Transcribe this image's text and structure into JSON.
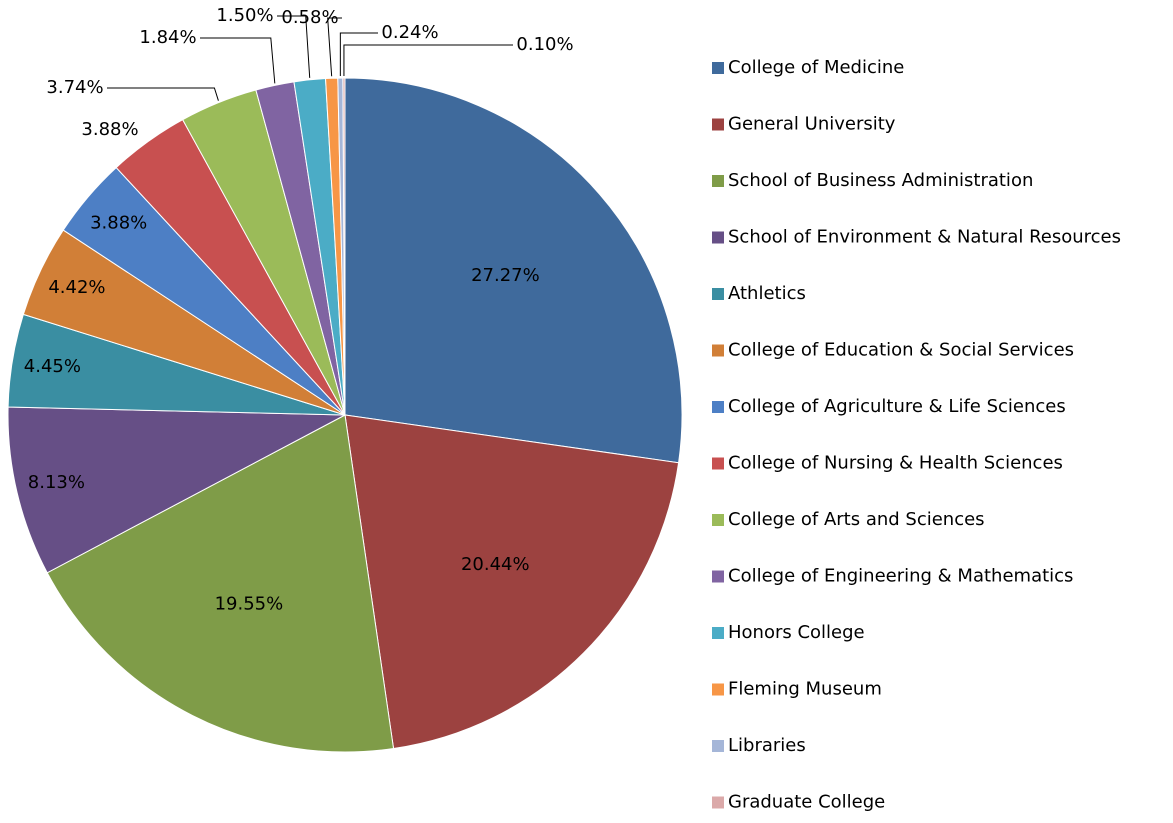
{
  "chart_data": {
    "type": "pie",
    "categories": [
      "College of Medicine",
      "General University",
      "School of Business Administration",
      "School of Environment & Natural Resources",
      "Athletics",
      "College of Education & Social Services",
      "College of Agriculture & Life Sciences",
      "College of Nursing & Health Sciences",
      "College of Arts and Sciences",
      "College of Engineering & Mathematics",
      "Honors College",
      "Fleming Museum",
      "Libraries",
      "Graduate College"
    ],
    "values": [
      27.27,
      20.44,
      19.55,
      8.13,
      4.45,
      4.42,
      3.88,
      3.88,
      3.74,
      1.84,
      1.5,
      0.58,
      0.24,
      0.1
    ],
    "value_labels": [
      "27.27%",
      "20.44%",
      "19.55%",
      "8.13%",
      "4.45%",
      "4.42%",
      "3.88%",
      "3.88%",
      "3.74%",
      "1.84%",
      "1.50%",
      "0.58%",
      "0.24%",
      "0.10%"
    ],
    "colors": [
      "#3f6a9c",
      "#9c4240",
      "#7f9c48",
      "#664f86",
      "#3a8ea2",
      "#d17f37",
      "#4d7fc5",
      "#c85050",
      "#9bbb59",
      "#8064a2",
      "#4bacc6",
      "#f79646",
      "#a5b6d8",
      "#dba9a9"
    ],
    "legend": "right"
  }
}
